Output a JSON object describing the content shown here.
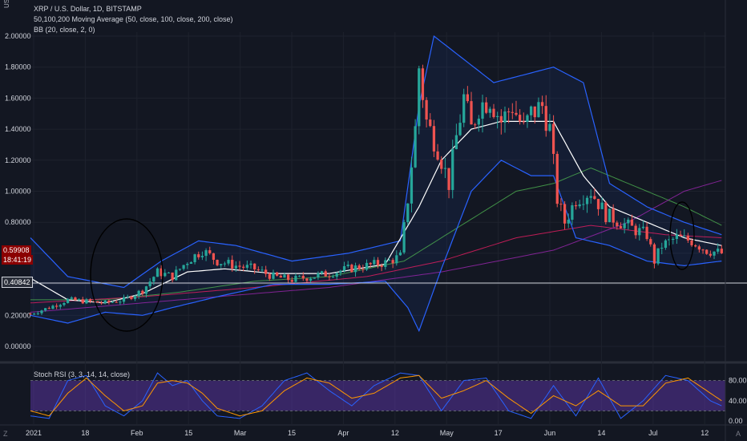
{
  "header": {
    "currency": "USD",
    "symbol_line": "XRP / U.S. Dollar, 1D, BITSTAMP",
    "ma_line": "50,100,200 Moving Average (50, close, 100, close, 200, close)",
    "bb_line": "BB (20, close, 2, 0)",
    "stoch_line": "Stoch RSI (3, 3, 14, 14, close)"
  },
  "badges": {
    "last_price": "0.59908",
    "countdown": "18:41:19",
    "hline_value": "0.40842"
  },
  "corner": {
    "left": "Z",
    "right": "A"
  },
  "colors": {
    "background": "#131722",
    "up_candle": "#26a69a",
    "down_candle": "#ef5350",
    "bb_band": "#2962ff",
    "bb_basis": "#ffffff",
    "ma50": "#4caf50",
    "ma100": "#e91e63",
    "ma200": "#9c27b0",
    "stoch_k": "#2962ff",
    "stoch_d": "#ff9800",
    "rsi_band": "#673ab7",
    "last_price_badge": "#8b0000"
  },
  "chart_data": [
    {
      "type": "candlestick",
      "title": "XRP / U.S. Dollar, 1D, BITSTAMP",
      "y_ticks": [
        "2.00000",
        "1.80000",
        "1.60000",
        "1.40000",
        "1.20000",
        "1.00000",
        "0.80000",
        "0.60000",
        "0.40000",
        "0.20000",
        "0.00000"
      ],
      "ylim": [
        0,
        2.0
      ],
      "x_ticks": [
        "2021",
        "18",
        "Feb",
        "15",
        "Mar",
        "15",
        "Apr",
        "12",
        "May",
        "17",
        "Jun",
        "14",
        "Jul",
        "12"
      ],
      "horizontal_line": 0.40842,
      "close_path": [
        [
          0,
          0.21
        ],
        [
          5,
          0.25
        ],
        [
          10,
          0.3
        ],
        [
          15,
          0.29
        ],
        [
          20,
          0.28
        ],
        [
          25,
          0.3
        ],
        [
          30,
          0.36
        ],
        [
          34,
          0.48
        ],
        [
          38,
          0.45
        ],
        [
          42,
          0.55
        ],
        [
          46,
          0.62
        ],
        [
          50,
          0.55
        ],
        [
          55,
          0.52
        ],
        [
          60,
          0.5
        ],
        [
          65,
          0.45
        ],
        [
          70,
          0.43
        ],
        [
          75,
          0.45
        ],
        [
          80,
          0.47
        ],
        [
          85,
          0.5
        ],
        [
          90,
          0.52
        ],
        [
          95,
          0.54
        ],
        [
          99,
          0.58
        ],
        [
          101,
          0.95
        ],
        [
          103,
          1.4
        ],
        [
          104,
          1.8
        ],
        [
          106,
          1.45
        ],
        [
          109,
          1.28
        ],
        [
          112,
          1.05
        ],
        [
          114,
          1.35
        ],
        [
          116,
          1.6
        ],
        [
          118,
          1.4
        ],
        [
          120,
          1.55
        ],
        [
          123,
          1.6
        ],
        [
          126,
          1.45
        ],
        [
          129,
          1.55
        ],
        [
          132,
          1.4
        ],
        [
          134,
          1.5
        ],
        [
          137,
          1.55
        ],
        [
          139,
          1.4
        ],
        [
          141,
          0.95
        ],
        [
          143,
          0.8
        ],
        [
          146,
          0.95
        ],
        [
          150,
          1.0
        ],
        [
          154,
          0.85
        ],
        [
          158,
          0.8
        ],
        [
          162,
          0.75
        ],
        [
          165,
          0.72
        ],
        [
          167,
          0.55
        ],
        [
          169,
          0.65
        ],
        [
          173,
          0.7
        ],
        [
          177,
          0.68
        ],
        [
          181,
          0.62
        ],
        [
          185,
          0.6
        ]
      ],
      "annotations": [
        "circle near Feb spike",
        "circle near last bars"
      ]
    },
    {
      "type": "line",
      "title": "BB (20, close, 2, 0)",
      "series": [
        {
          "name": "Upper",
          "values": [
            [
              0,
              0.7
            ],
            [
              10,
              0.45
            ],
            [
              25,
              0.38
            ],
            [
              35,
              0.55
            ],
            [
              45,
              0.68
            ],
            [
              55,
              0.65
            ],
            [
              70,
              0.55
            ],
            [
              85,
              0.6
            ],
            [
              99,
              0.68
            ],
            [
              104,
              1.55
            ],
            [
              108,
              2.0
            ],
            [
              116,
              1.85
            ],
            [
              124,
              1.7
            ],
            [
              132,
              1.75
            ],
            [
              140,
              1.8
            ],
            [
              148,
              1.7
            ],
            [
              155,
              1.05
            ],
            [
              165,
              0.9
            ],
            [
              175,
              0.8
            ],
            [
              185,
              0.72
            ]
          ]
        },
        {
          "name": "Basis",
          "values": [
            [
              0,
              0.44
            ],
            [
              10,
              0.3
            ],
            [
              20,
              0.28
            ],
            [
              30,
              0.34
            ],
            [
              42,
              0.48
            ],
            [
              52,
              0.5
            ],
            [
              65,
              0.47
            ],
            [
              80,
              0.47
            ],
            [
              95,
              0.53
            ],
            [
              104,
              0.9
            ],
            [
              110,
              1.2
            ],
            [
              118,
              1.4
            ],
            [
              126,
              1.45
            ],
            [
              134,
              1.45
            ],
            [
              140,
              1.45
            ],
            [
              148,
              1.1
            ],
            [
              155,
              0.9
            ],
            [
              165,
              0.8
            ],
            [
              175,
              0.7
            ],
            [
              185,
              0.65
            ]
          ]
        },
        {
          "name": "Lower",
          "values": [
            [
              0,
              0.2
            ],
            [
              10,
              0.15
            ],
            [
              20,
              0.22
            ],
            [
              30,
              0.2
            ],
            [
              38,
              0.25
            ],
            [
              50,
              0.32
            ],
            [
              65,
              0.4
            ],
            [
              80,
              0.4
            ],
            [
              95,
              0.42
            ],
            [
              101,
              0.25
            ],
            [
              104,
              0.1
            ],
            [
              110,
              0.5
            ],
            [
              118,
              1.0
            ],
            [
              126,
              1.2
            ],
            [
              134,
              1.1
            ],
            [
              140,
              1.1
            ],
            [
              146,
              0.7
            ],
            [
              155,
              0.65
            ],
            [
              165,
              0.55
            ],
            [
              175,
              0.52
            ],
            [
              185,
              0.55
            ]
          ]
        }
      ]
    },
    {
      "type": "line",
      "title": "50,100,200 Moving Average (50, close, 100, close, 200, close)",
      "series": [
        {
          "values": [
            [
              0,
              0.3
            ],
            [
              20,
              0.3
            ],
            [
              40,
              0.35
            ],
            [
              60,
              0.42
            ],
            [
              80,
              0.45
            ],
            [
              100,
              0.55
            ],
            [
              110,
              0.7
            ],
            [
              120,
              0.85
            ],
            [
              130,
              1.0
            ],
            [
              140,
              1.05
            ],
            [
              150,
              1.15
            ],
            [
              160,
              1.05
            ],
            [
              175,
              0.9
            ],
            [
              185,
              0.78
            ]
          ]
        },
        {
          "values": [
            [
              0,
              0.28
            ],
            [
              30,
              0.32
            ],
            [
              60,
              0.38
            ],
            [
              90,
              0.45
            ],
            [
              110,
              0.55
            ],
            [
              130,
              0.7
            ],
            [
              150,
              0.78
            ],
            [
              170,
              0.72
            ],
            [
              185,
              0.7
            ]
          ]
        },
        {
          "values": [
            [
              0,
              0.22
            ],
            [
              40,
              0.3
            ],
            [
              80,
              0.38
            ],
            [
              110,
              0.48
            ],
            [
              140,
              0.62
            ],
            [
              160,
              0.8
            ],
            [
              175,
              1.0
            ],
            [
              185,
              1.07
            ]
          ]
        }
      ]
    },
    {
      "type": "line",
      "title": "Stoch RSI (3, 3, 14, 14, close)",
      "y_ticks": [
        "80.00",
        "40.00",
        "0.00"
      ],
      "ylim": [
        0,
        100
      ],
      "band": [
        20,
        80
      ],
      "series": [
        {
          "name": "K",
          "values": [
            [
              0,
              10
            ],
            [
              5,
              5
            ],
            [
              10,
              80
            ],
            [
              15,
              90
            ],
            [
              20,
              30
            ],
            [
              25,
              10
            ],
            [
              30,
              40
            ],
            [
              34,
              95
            ],
            [
              38,
              70
            ],
            [
              42,
              80
            ],
            [
              46,
              40
            ],
            [
              50,
              10
            ],
            [
              56,
              5
            ],
            [
              62,
              30
            ],
            [
              68,
              80
            ],
            [
              74,
              95
            ],
            [
              80,
              60
            ],
            [
              86,
              30
            ],
            [
              92,
              70
            ],
            [
              99,
              95
            ],
            [
              104,
              90
            ],
            [
              110,
              20
            ],
            [
              116,
              80
            ],
            [
              122,
              85
            ],
            [
              128,
              20
            ],
            [
              134,
              5
            ],
            [
              140,
              70
            ],
            [
              146,
              10
            ],
            [
              152,
              85
            ],
            [
              158,
              5
            ],
            [
              164,
              40
            ],
            [
              170,
              90
            ],
            [
              176,
              80
            ],
            [
              182,
              40
            ],
            [
              185,
              30
            ]
          ]
        },
        {
          "name": "D",
          "values": [
            [
              0,
              20
            ],
            [
              5,
              10
            ],
            [
              10,
              55
            ],
            [
              15,
              85
            ],
            [
              20,
              50
            ],
            [
              25,
              20
            ],
            [
              30,
              30
            ],
            [
              34,
              75
            ],
            [
              38,
              80
            ],
            [
              42,
              75
            ],
            [
              46,
              55
            ],
            [
              50,
              25
            ],
            [
              56,
              10
            ],
            [
              62,
              20
            ],
            [
              68,
              60
            ],
            [
              74,
              85
            ],
            [
              80,
              75
            ],
            [
              86,
              45
            ],
            [
              92,
              55
            ],
            [
              99,
              85
            ],
            [
              104,
              90
            ],
            [
              110,
              45
            ],
            [
              116,
              60
            ],
            [
              122,
              80
            ],
            [
              128,
              45
            ],
            [
              134,
              15
            ],
            [
              140,
              50
            ],
            [
              146,
              30
            ],
            [
              152,
              60
            ],
            [
              158,
              30
            ],
            [
              164,
              30
            ],
            [
              170,
              75
            ],
            [
              176,
              85
            ],
            [
              182,
              55
            ],
            [
              185,
              40
            ]
          ]
        }
      ]
    }
  ]
}
